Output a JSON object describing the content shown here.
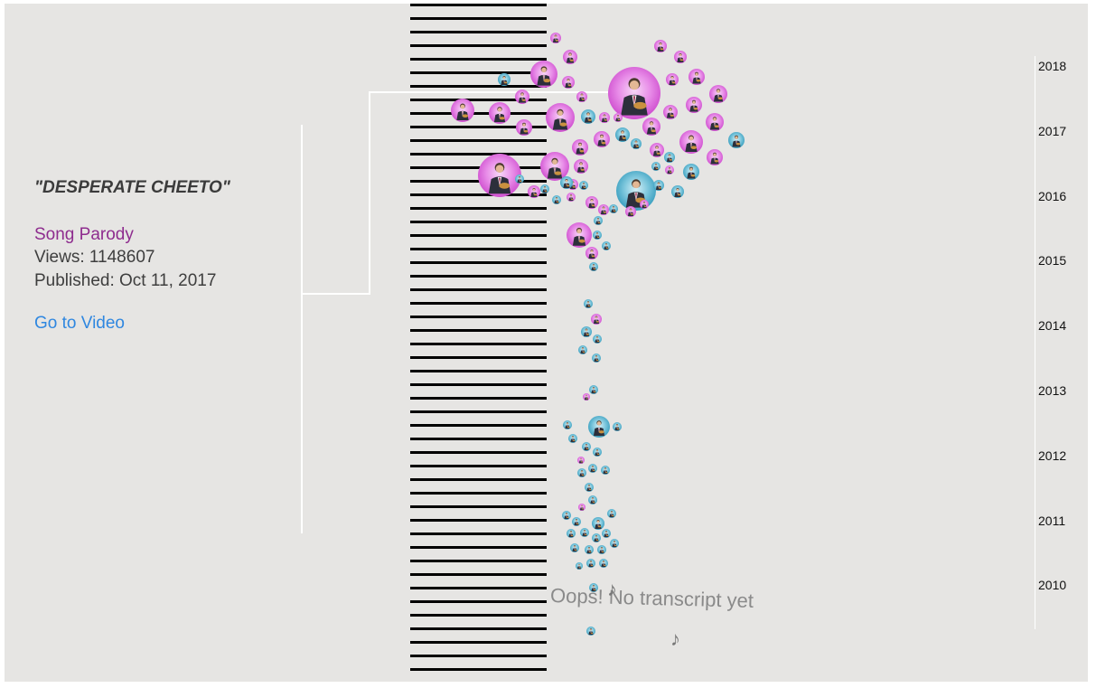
{
  "selected_video": {
    "title": "\"DESPERATE CHEETO\"",
    "category": "Song Parody",
    "views_line": "Views: 1148607",
    "published_line": "Published: Oct 11, 2017",
    "link_label": "Go to Video"
  },
  "timeline": {
    "years": [
      "2018",
      "2017",
      "2016",
      "2015",
      "2014",
      "2013",
      "2012",
      "2011",
      "2010"
    ]
  },
  "status_message": "Oops! No transcript yet",
  "note_glyph": "♪",
  "colors": {
    "background": "#e6e5e3",
    "parody": "#d35ad3",
    "other": "#3ea6c6",
    "category_text": "#8e2c8e",
    "link": "#2f87e0"
  },
  "legend": {
    "parody": "Song Parody"
  }
}
